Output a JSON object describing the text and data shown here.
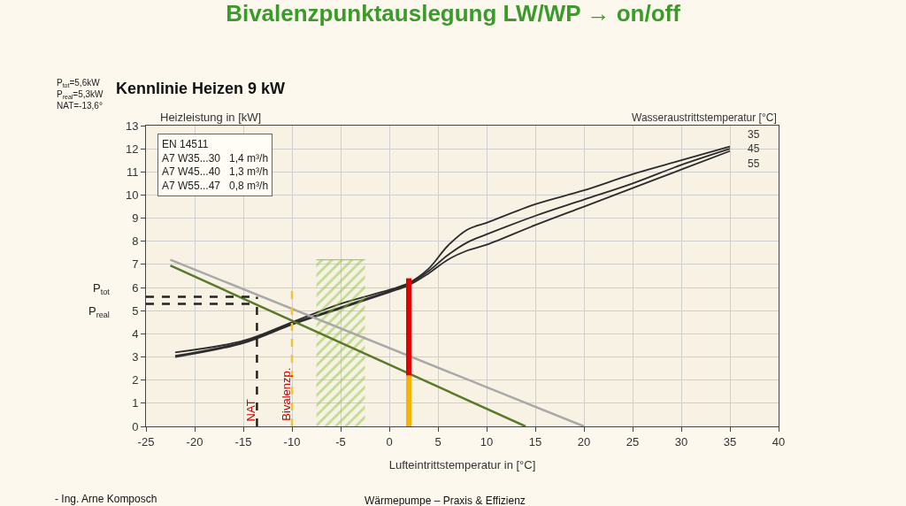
{
  "chart_data": {
    "type": "line",
    "title": "Bivalenzpunktauslegung LW/WP → on/off",
    "subtitle": "Kennlinie Heizen 9 kW",
    "xlabel": "Lufteintrittstemperatur in [°C]",
    "ylabel": "Heizleistung in [kW]",
    "legend_title": "Wasseraustrittstemperatur [°C]",
    "xlim": [
      -25,
      40
    ],
    "xticks": [
      -25,
      -20,
      -15,
      -10,
      -5,
      0,
      5,
      10,
      15,
      20,
      25,
      30,
      35,
      40
    ],
    "ylim": [
      0,
      13
    ],
    "yticks": [
      0,
      1,
      2,
      3,
      4,
      5,
      6,
      7,
      8,
      9,
      10,
      11,
      12,
      13
    ],
    "grid": true,
    "series": [
      {
        "name": "35",
        "color": "#2b2b2b",
        "x": [
          -22,
          -15,
          -10,
          -5,
          0,
          2,
          4,
          6,
          8,
          10,
          15,
          20,
          25,
          30,
          35
        ],
        "values": [
          3.2,
          3.7,
          4.5,
          5.3,
          5.9,
          6.2,
          6.8,
          7.8,
          8.5,
          8.8,
          9.6,
          10.2,
          10.9,
          11.5,
          12.1
        ]
      },
      {
        "name": "45",
        "color": "#2b2b2b",
        "x": [
          -22,
          -15,
          -10,
          -5,
          0,
          2,
          4,
          6,
          8,
          10,
          15,
          20,
          25,
          30,
          35
        ],
        "values": [
          3.05,
          3.65,
          4.45,
          5.15,
          5.85,
          6.15,
          6.7,
          7.4,
          7.95,
          8.3,
          9.1,
          9.8,
          10.5,
          11.3,
          12.0
        ]
      },
      {
        "name": "55",
        "color": "#2b2b2b",
        "x": [
          -22,
          -15,
          -10,
          -5,
          0,
          2,
          4,
          6,
          8,
          10,
          15,
          20,
          25,
          30,
          35
        ],
        "values": [
          3.0,
          3.6,
          4.4,
          5.1,
          5.8,
          6.1,
          6.6,
          7.2,
          7.6,
          7.85,
          8.7,
          9.5,
          10.3,
          11.1,
          11.9
        ]
      },
      {
        "type": "area",
        "color": "#8cc63f",
        "x": [
          -7.5,
          -2.5
        ],
        "values": [
          7.2,
          7.2
        ]
      },
      {
        "color": "#a8a8a8",
        "x": [
          -22.5,
          20
        ],
        "values": [
          7.2,
          0
        ]
      },
      {
        "color": "#5a7a2a",
        "x": [
          -22.5,
          14
        ],
        "values": [
          6.95,
          0
        ]
      },
      {
        "color": "#f4b400",
        "x": [
          2,
          2
        ],
        "values": [
          0,
          2.2
        ]
      },
      {
        "color": "#e00000",
        "x": [
          2,
          2
        ],
        "values": [
          2.2,
          6.4
        ]
      },
      {
        "color": "#f4c430",
        "line_style": "dashed",
        "x": [
          -10,
          -10
        ],
        "values": [
          0,
          5.9
        ]
      },
      {
        "color": "#222222",
        "line_style": "dashed",
        "x": [
          -13.6,
          -13.6
        ],
        "values": [
          0,
          5.6
        ]
      },
      {
        "color": "#222222",
        "line_style": "dashed",
        "x": [
          -25,
          -13.6
        ],
        "values": [
          5.6,
          5.6
        ]
      },
      {
        "color": "#222222",
        "line_style": "dashed",
        "x": [
          -25,
          -13.6
        ],
        "values": [
          5.3,
          5.3
        ]
      }
    ],
    "annotations": [
      "P$_{tot}$=5,6kW\nP$_{real}$=5,3kW\nNAT=-13,6°",
      "EN 14511\nA7 W35...30   1,4 m³/h\nA7 W45...40   1,3 m³/h\nA7 W55...47   0,8 m³/h",
      "- Ing. Arne Komposch",
      "Wärmepumpe – Praxis & Effizienz",
      "P$_{tot}$",
      "P$_{real}$",
      "NAT",
      "Bivalenzp."
    ]
  }
}
